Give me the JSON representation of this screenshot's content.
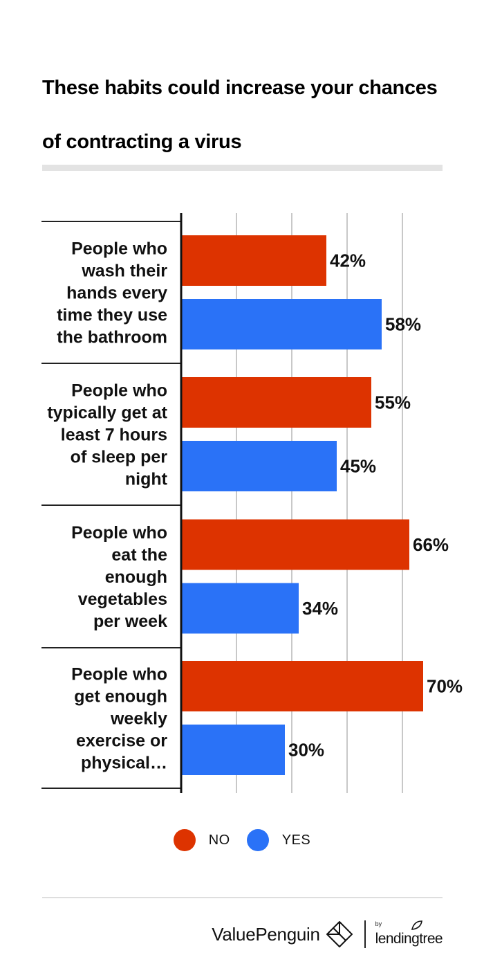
{
  "title_line1": "These habits could increase your chances",
  "title_line2": "of contracting a virus",
  "colors": {
    "no": "#dd3300",
    "yes": "#2a72f7",
    "grid": "#c8c8c8",
    "axis": "#111111",
    "separator": "#222222"
  },
  "chart_data": {
    "type": "bar",
    "orientation": "horizontal",
    "title": "These habits could increase your chances of contracting a virus",
    "categories": [
      [
        "People who",
        "wash their",
        "hands every",
        "time they use",
        "the bathroom"
      ],
      [
        "People who",
        "typically get at",
        "least 7 hours",
        "of sleep per",
        "night"
      ],
      [
        "People who",
        "eat the",
        "enough",
        "vegetables",
        "per week"
      ],
      [
        "People who",
        "get enough",
        "weekly",
        "exercise or",
        "physical…"
      ]
    ],
    "series": [
      {
        "name": "NO",
        "values": [
          42,
          55,
          66,
          70
        ]
      },
      {
        "name": "YES",
        "values": [
          58,
          45,
          34,
          30
        ]
      }
    ],
    "value_suffix": "%",
    "xlim": [
      0,
      100
    ],
    "grid": true,
    "legend_position": "bottom-center"
  },
  "legend": {
    "no_label": "NO",
    "yes_label": "YES"
  },
  "brand": {
    "name": "ValuePenguin",
    "by": "by",
    "partner": "lendingtree"
  }
}
